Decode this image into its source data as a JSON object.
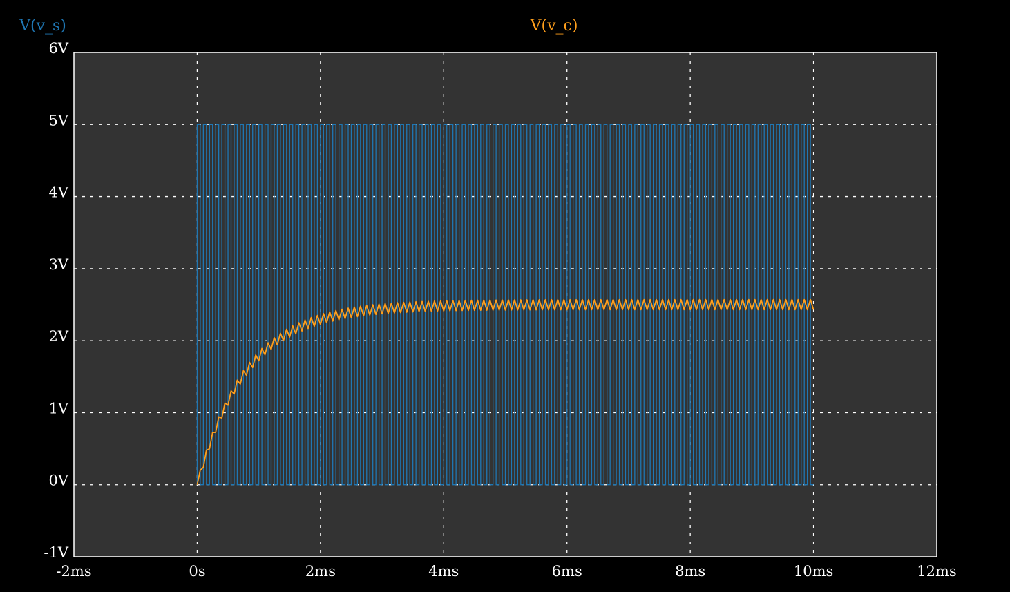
{
  "chart_data": {
    "type": "line",
    "title": "",
    "xlabel": "",
    "ylabel": "",
    "xlim": [
      -2,
      12
    ],
    "ylim": [
      -1,
      6
    ],
    "x_unit": "ms",
    "y_unit": "V",
    "grid": true,
    "x_ticks": [
      "-2ms",
      "0s",
      "2ms",
      "4ms",
      "6ms",
      "8ms",
      "10ms",
      "12ms"
    ],
    "y_ticks": [
      "6V",
      "5V",
      "4V",
      "3V",
      "2V",
      "1V",
      "0V",
      "-1V"
    ],
    "series": [
      {
        "name": "V(v_s)",
        "color": "#1f77b4",
        "kind": "square-wave",
        "low": 0,
        "high": 5,
        "start_ms": 0,
        "stop_ms": 10,
        "period_ms": 0.1
      },
      {
        "name": "V(v_c)",
        "color": "#ff9f1c",
        "kind": "rc-charging-ripple",
        "start_ms": 0,
        "stop_ms": 10,
        "final_value": 2.5,
        "time_constant_ms": 0.8,
        "ripple_pp": 0.14,
        "ripple_period_ms": 0.1
      }
    ]
  },
  "colors": {
    "background": "#000000",
    "plot_area": "#333333",
    "grid": "#ffffff",
    "axis_text": "#ffffff"
  }
}
